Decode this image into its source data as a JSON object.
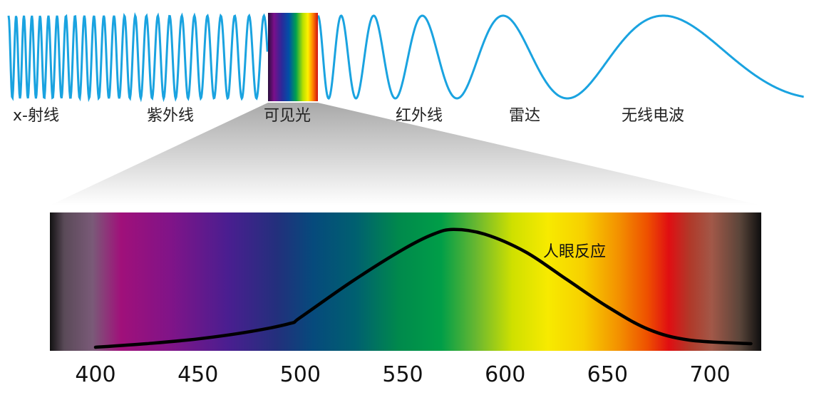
{
  "spectrum": {
    "bands": [
      {
        "key": "xray",
        "label": "x-射线"
      },
      {
        "key": "uv",
        "label": "紫外线"
      },
      {
        "key": "visible",
        "label": "可见光"
      },
      {
        "key": "ir",
        "label": "红外线"
      },
      {
        "key": "radar",
        "label": "雷达"
      },
      {
        "key": "radio",
        "label": "无线电波"
      }
    ],
    "wave_color": "#1aa3e0"
  },
  "chart_data": {
    "type": "line",
    "series": [
      {
        "name": "人眼反应",
        "x": [
          400,
          425,
          450,
          475,
          495,
          500,
          525,
          550,
          565,
          575,
          590,
          610,
          630,
          650,
          670,
          690,
          720
        ],
        "y": [
          0.0,
          0.03,
          0.07,
          0.13,
          0.2,
          0.25,
          0.55,
          0.82,
          0.95,
          0.99,
          0.95,
          0.8,
          0.57,
          0.34,
          0.15,
          0.06,
          0.03
        ]
      }
    ],
    "x_ticks": [
      400,
      450,
      500,
      550,
      600,
      650,
      700
    ],
    "x_tick_labels": [
      "400",
      "450",
      "500",
      "550",
      "600",
      "650",
      "700"
    ],
    "xlim": [
      380,
      725
    ],
    "ylim": [
      0,
      1
    ],
    "grid": false,
    "title": "",
    "xlabel": "",
    "ylabel": ""
  }
}
